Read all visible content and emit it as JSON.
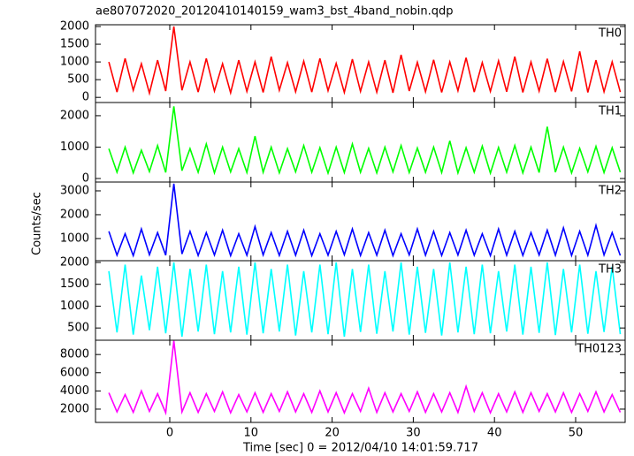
{
  "chart_data": [
    {
      "type": "line",
      "title": "ae807072020_20120410140159_wam3_bst_4band_nobin.qdp",
      "ylabel": "Counts/sec",
      "xlim": [
        -9.15,
        56.1
      ],
      "x": [
        -7.5,
        -6.5,
        -5.5,
        -4.5,
        -3.5,
        -2.5,
        -1.5,
        -0.5,
        0.5,
        1.5,
        2.5,
        3.5,
        4.5,
        5.5,
        6.5,
        7.5,
        8.5,
        9.5,
        10.5,
        11.5,
        12.5,
        13.5,
        14.5,
        15.5,
        16.5,
        17.5,
        18.5,
        19.5,
        20.5,
        21.5,
        22.5,
        23.5,
        24.5,
        25.5,
        26.5,
        27.5,
        28.5,
        29.5,
        30.5,
        31.5,
        32.5,
        33.5,
        34.5,
        35.5,
        36.5,
        37.5,
        38.5,
        39.5,
        40.5,
        41.5,
        42.5,
        43.5,
        44.5,
        45.5,
        46.5,
        47.5,
        48.5,
        49.5,
        50.5,
        51.5,
        52.5,
        53.5,
        54.5,
        55.5
      ],
      "ylim": [
        -145,
        2050
      ],
      "yticks": [
        0,
        500,
        1000,
        1500,
        2000
      ],
      "series": [
        {
          "name": "TH0",
          "color": "#ff0000",
          "values": [
            1000,
            150,
            1100,
            200,
            950,
            120,
            1050,
            180,
            2000,
            200,
            1000,
            150,
            1100,
            180,
            950,
            130,
            1050,
            170,
            1000,
            140,
            1150,
            200,
            980,
            160,
            1020,
            150,
            1100,
            190,
            960,
            140,
            1080,
            170,
            1000,
            150,
            1050,
            130,
            1200,
            180,
            990,
            160,
            1060,
            140,
            1000,
            190,
            1120,
            150,
            980,
            170,
            1030,
            160,
            1150,
            140,
            1000,
            180,
            1090,
            150,
            1010,
            170,
            1300,
            140,
            1050,
            160,
            1000,
            150
          ]
        }
      ]
    },
    {
      "type": "line",
      "xlim": [
        -9.15,
        56.1
      ],
      "x": [
        -7.5,
        -6.5,
        -5.5,
        -4.5,
        -3.5,
        -2.5,
        -1.5,
        -0.5,
        0.5,
        1.5,
        2.5,
        3.5,
        4.5,
        5.5,
        6.5,
        7.5,
        8.5,
        9.5,
        10.5,
        11.5,
        12.5,
        13.5,
        14.5,
        15.5,
        16.5,
        17.5,
        18.5,
        19.5,
        20.5,
        21.5,
        22.5,
        23.5,
        24.5,
        25.5,
        26.5,
        27.5,
        28.5,
        29.5,
        30.5,
        31.5,
        32.5,
        33.5,
        34.5,
        35.5,
        36.5,
        37.5,
        38.5,
        39.5,
        40.5,
        41.5,
        42.5,
        43.5,
        44.5,
        45.5,
        46.5,
        47.5,
        48.5,
        49.5,
        50.5,
        51.5,
        52.5,
        53.5,
        54.5,
        55.5
      ],
      "ylim": [
        -113,
        2420
      ],
      "yticks": [
        0,
        1000,
        2000
      ],
      "series": [
        {
          "name": "TH1",
          "color": "#00ff00",
          "values": [
            950,
            200,
            1000,
            180,
            900,
            220,
            1050,
            190,
            2300,
            250,
            950,
            200,
            1100,
            180,
            1000,
            210,
            950,
            190,
            1350,
            200,
            1000,
            180,
            950,
            210,
            1050,
            200,
            980,
            170,
            1000,
            190,
            1100,
            200,
            960,
            180,
            1000,
            210,
            1050,
            190,
            970,
            200,
            1000,
            190,
            1200,
            180,
            980,
            200,
            1030,
            170,
            990,
            200,
            1050,
            180,
            1000,
            190,
            1650,
            200,
            1000,
            180,
            960,
            210,
            1020,
            190,
            980,
            200
          ]
        }
      ]
    },
    {
      "type": "line",
      "xlim": [
        -9.15,
        56.1
      ],
      "x": [
        -7.5,
        -6.5,
        -5.5,
        -4.5,
        -3.5,
        -2.5,
        -1.5,
        -0.5,
        0.5,
        1.5,
        2.5,
        3.5,
        4.5,
        5.5,
        6.5,
        7.5,
        8.5,
        9.5,
        10.5,
        11.5,
        12.5,
        13.5,
        14.5,
        15.5,
        16.5,
        17.5,
        18.5,
        19.5,
        20.5,
        21.5,
        22.5,
        23.5,
        24.5,
        25.5,
        26.5,
        27.5,
        28.5,
        29.5,
        30.5,
        31.5,
        32.5,
        33.5,
        34.5,
        35.5,
        36.5,
        37.5,
        38.5,
        39.5,
        40.5,
        41.5,
        42.5,
        43.5,
        44.5,
        45.5,
        46.5,
        47.5,
        48.5,
        49.5,
        50.5,
        51.5,
        52.5,
        53.5,
        54.5,
        55.5
      ],
      "ylim": [
        70,
        3370
      ],
      "yticks": [
        1000,
        2000,
        3000
      ],
      "series": [
        {
          "name": "TH2",
          "color": "#0000ff",
          "values": [
            1300,
            300,
            1200,
            280,
            1400,
            320,
            1250,
            300,
            3300,
            350,
            1300,
            290,
            1250,
            310,
            1350,
            280,
            1200,
            300,
            1500,
            310,
            1250,
            290,
            1300,
            300,
            1350,
            280,
            1200,
            300,
            1300,
            320,
            1400,
            290,
            1250,
            300,
            1350,
            280,
            1200,
            310,
            1400,
            300,
            1300,
            290,
            1250,
            310,
            1350,
            300,
            1200,
            280,
            1400,
            300,
            1300,
            290,
            1250,
            310,
            1350,
            300,
            1450,
            290,
            1300,
            300,
            1550,
            310,
            1250,
            290
          ]
        }
      ]
    },
    {
      "type": "line",
      "xlim": [
        -9.15,
        56.1
      ],
      "x": [
        -7.5,
        -6.5,
        -5.5,
        -4.5,
        -3.5,
        -2.5,
        -1.5,
        -0.5,
        0.5,
        1.5,
        2.5,
        3.5,
        4.5,
        5.5,
        6.5,
        7.5,
        8.5,
        9.5,
        10.5,
        11.5,
        12.5,
        13.5,
        14.5,
        15.5,
        16.5,
        17.5,
        18.5,
        19.5,
        20.5,
        21.5,
        22.5,
        23.5,
        24.5,
        25.5,
        26.5,
        27.5,
        28.5,
        29.5,
        30.5,
        31.5,
        32.5,
        33.5,
        34.5,
        35.5,
        36.5,
        37.5,
        38.5,
        39.5,
        40.5,
        41.5,
        42.5,
        43.5,
        44.5,
        45.5,
        46.5,
        47.5,
        48.5,
        49.5,
        50.5,
        51.5,
        52.5,
        53.5,
        54.5,
        55.5
      ],
      "ylim": [
        220,
        2040
      ],
      "yticks": [
        500,
        1000,
        1500,
        2000
      ],
      "series": [
        {
          "name": "TH3",
          "color": "#00ffff",
          "values": [
            1800,
            400,
            1950,
            350,
            1700,
            450,
            1900,
            380,
            2000,
            300,
            1850,
            420,
            1950,
            360,
            1800,
            400,
            1900,
            350,
            2000,
            380,
            1850,
            420,
            1950,
            330,
            1800,
            400,
            1950,
            360,
            2000,
            300,
            1850,
            410,
            1950,
            370,
            1800,
            420,
            2000,
            350,
            1900,
            390,
            1850,
            330,
            2000,
            400,
            1900,
            360,
            1950,
            380,
            1800,
            420,
            1950,
            350,
            1900,
            390,
            2000,
            340,
            1850,
            400,
            1950,
            370,
            1800,
            410,
            1900,
            360
          ]
        }
      ]
    },
    {
      "type": "line",
      "xlabel": "Time [sec] 0 = 2012/04/10 14:01:59.717",
      "xlim": [
        -9.15,
        56.1
      ],
      "xticks": [
        0,
        10,
        20,
        30,
        40,
        50
      ],
      "x": [
        -7.5,
        -6.5,
        -5.5,
        -4.5,
        -3.5,
        -2.5,
        -1.5,
        -0.5,
        0.5,
        1.5,
        2.5,
        3.5,
        4.5,
        5.5,
        6.5,
        7.5,
        8.5,
        9.5,
        10.5,
        11.5,
        12.5,
        13.5,
        14.5,
        15.5,
        16.5,
        17.5,
        18.5,
        19.5,
        20.5,
        21.5,
        22.5,
        23.5,
        24.5,
        25.5,
        26.5,
        27.5,
        28.5,
        29.5,
        30.5,
        31.5,
        32.5,
        33.5,
        34.5,
        35.5,
        36.5,
        37.5,
        38.5,
        39.5,
        40.5,
        41.5,
        42.5,
        43.5,
        44.5,
        45.5,
        46.5,
        47.5,
        48.5,
        49.5,
        50.5,
        51.5,
        52.5,
        53.5,
        54.5,
        55.5
      ],
      "ylim": [
        540,
        9570
      ],
      "yticks": [
        2000,
        4000,
        6000,
        8000
      ],
      "series": [
        {
          "name": "TH0123",
          "color": "#ff00ff",
          "values": [
            3800,
            1700,
            3600,
            1650,
            4000,
            1750,
            3700,
            1600,
            9500,
            1700,
            3800,
            1650,
            3700,
            1750,
            3900,
            1600,
            3600,
            1700,
            3800,
            1650,
            3700,
            1750,
            3900,
            1700,
            3700,
            1650,
            4000,
            1700,
            3800,
            1600,
            3700,
            1750,
            4300,
            1650,
            3800,
            1700,
            3700,
            1750,
            3900,
            1650,
            3700,
            1700,
            3800,
            1650,
            4500,
            1750,
            3800,
            1600,
            3700,
            1700,
            3900,
            1650,
            3800,
            1750,
            3700,
            1700,
            3800,
            1650,
            3700,
            1750,
            3900,
            1700,
            3600,
            1650
          ]
        }
      ]
    }
  ]
}
